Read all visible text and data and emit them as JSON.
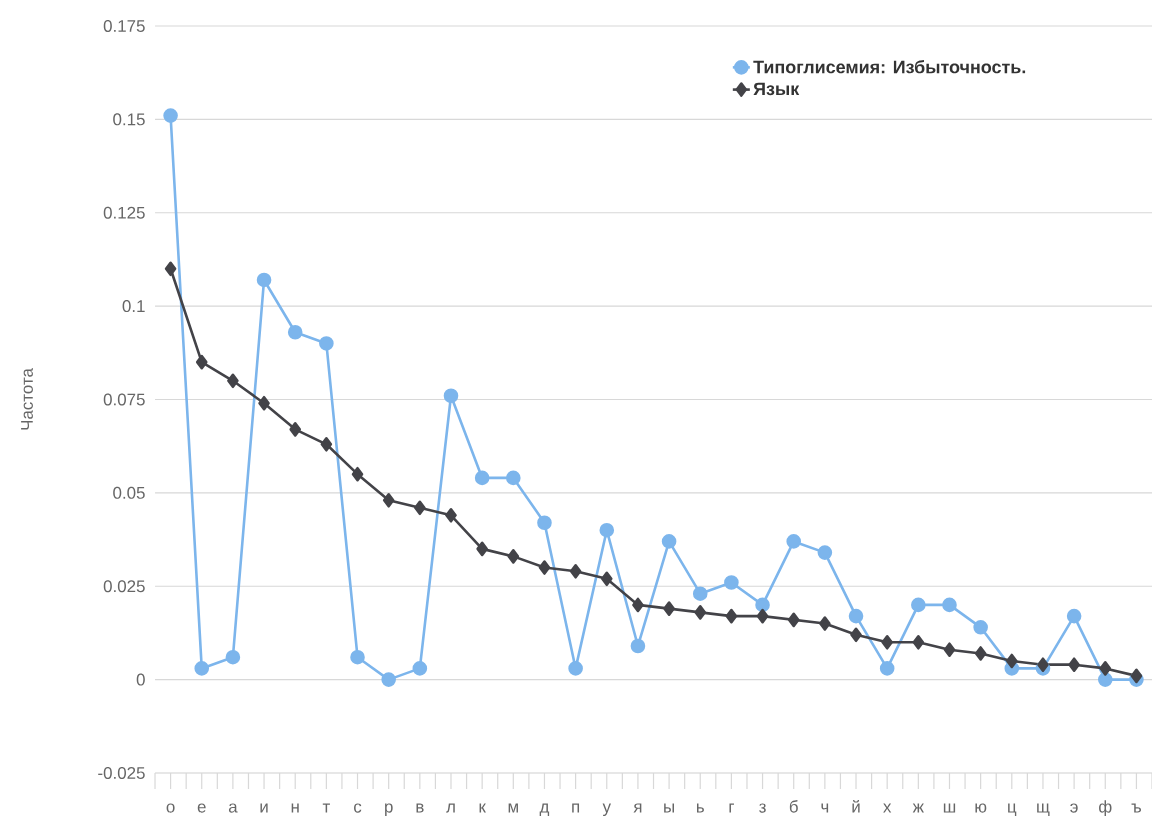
{
  "chart_data": {
    "type": "line",
    "ylabel": "Частота",
    "categories": [
      "о",
      "е",
      "а",
      "и",
      "н",
      "т",
      "с",
      "р",
      "в",
      "л",
      "к",
      "м",
      "д",
      "п",
      "у",
      "я",
      "ы",
      "ь",
      "г",
      "з",
      "б",
      "ч",
      "й",
      "х",
      "ж",
      "ш",
      "ю",
      "ц",
      "щ",
      "э",
      "ф",
      "ъ"
    ],
    "series": [
      {
        "name": "Типоглисемия: Избыточность.",
        "color": "#7cb5ec",
        "marker": "circle",
        "values": [
          0.151,
          0.003,
          0.006,
          0.107,
          0.093,
          0.09,
          0.006,
          0.0,
          0.003,
          0.076,
          0.054,
          0.054,
          0.042,
          0.003,
          0.04,
          0.009,
          0.037,
          0.023,
          0.026,
          0.02,
          0.037,
          0.034,
          0.017,
          0.003,
          0.02,
          0.02,
          0.014,
          0.003,
          0.003,
          0.017,
          0.0,
          0.0
        ]
      },
      {
        "name": "Язык",
        "color": "#434348",
        "marker": "diamond",
        "values": [
          0.11,
          0.085,
          0.08,
          0.074,
          0.067,
          0.063,
          0.055,
          0.048,
          0.046,
          0.044,
          0.035,
          0.033,
          0.03,
          0.029,
          0.027,
          0.02,
          0.019,
          0.018,
          0.017,
          0.017,
          0.016,
          0.015,
          0.012,
          0.01,
          0.01,
          0.008,
          0.007,
          0.005,
          0.004,
          0.004,
          0.003,
          0.001
        ]
      }
    ],
    "ylim": [
      -0.025,
      0.175
    ],
    "yticks": [
      -0.025,
      0,
      0.025,
      0.05,
      0.075,
      0.1,
      0.125,
      0.15,
      0.175
    ],
    "grid": "y",
    "legend": "top right",
    "line_style": "solid"
  }
}
